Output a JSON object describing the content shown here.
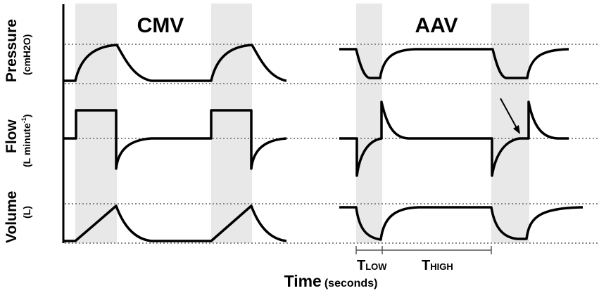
{
  "panels": {
    "left_title": "CMV",
    "right_title": "AAV"
  },
  "y_labels": {
    "pressure": "Pressure",
    "pressure_unit": "(cmH2O)",
    "flow": "Flow",
    "flow_unit_a": "(L minute",
    "flow_unit_sup": "-1",
    "flow_unit_b": ")",
    "volume": "Volume",
    "volume_unit": "(L)"
  },
  "x_label": {
    "main": "Time",
    "unit": "(seconds)"
  },
  "annotations": {
    "t_low_T": "T",
    "t_low_sub": "LOW",
    "t_high_T": "T",
    "t_high_sub": "HIGH"
  },
  "colors": {
    "trace": "#000000",
    "shading": "#e8e8e8",
    "reference_line": "#888888"
  }
}
